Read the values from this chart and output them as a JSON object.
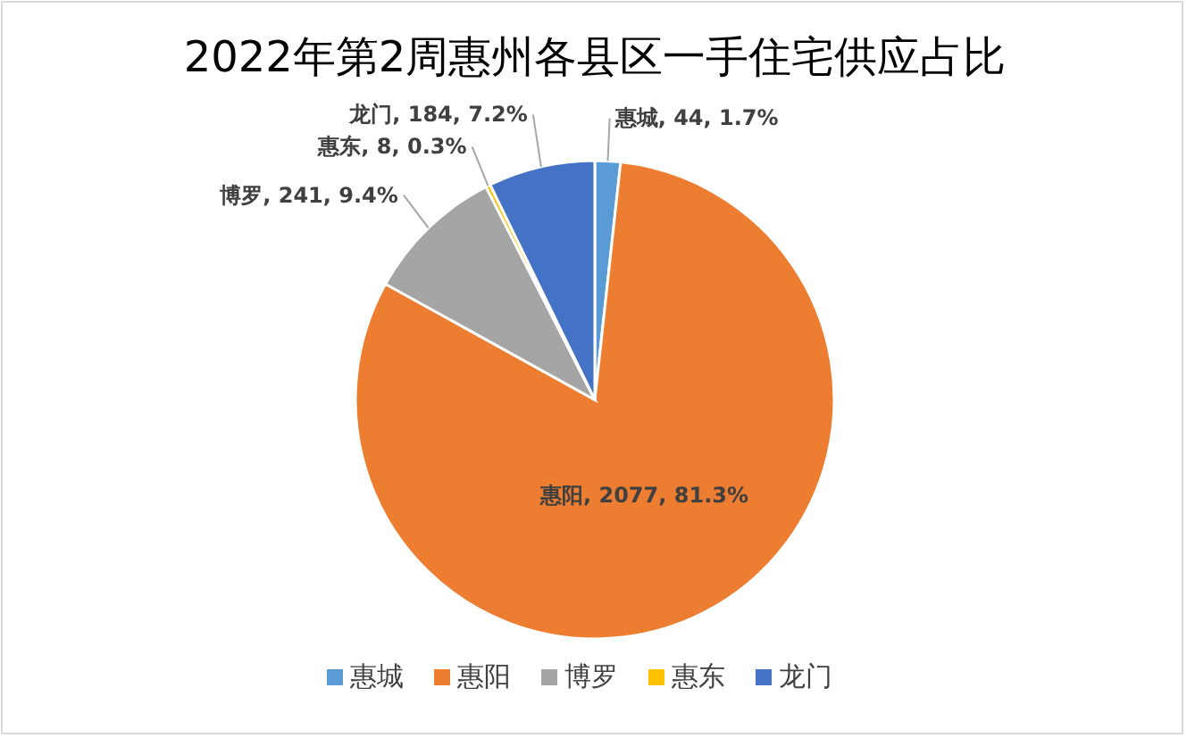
{
  "chart_data": {
    "type": "pie",
    "title": "2022年第2周惠州各县区一手住宅供应占比",
    "categories": [
      "惠城",
      "惠阳",
      "博罗",
      "惠东",
      "龙门"
    ],
    "values": [
      44,
      2077,
      241,
      8,
      184
    ],
    "colors": [
      "#5b9bd5",
      "#ed7d31",
      "#a5a5a5",
      "#ffc000",
      "#4472c4"
    ],
    "value_labels": [
      "惠城, 44, 1.7%",
      "惠阳, 2077, 81.3%",
      "博罗, 241, 9.4%",
      "惠东, 8, 0.3%",
      "龙门, 184, 7.2%"
    ],
    "legend": "bottom"
  }
}
